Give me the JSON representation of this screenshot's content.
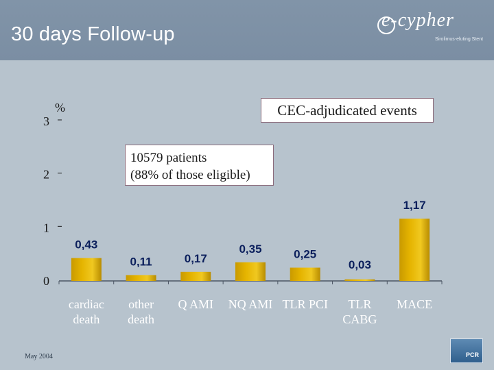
{
  "header": {
    "title": "30 days Follow-up",
    "logo_text": "e-cypher",
    "logo_sub": "Sirolimus-eluting Stent"
  },
  "annotations": {
    "cec": "CEC-adjudicated events",
    "patients_line1": "10579 patients",
    "patients_line2": "(88% of those eligible)"
  },
  "footer": {
    "date": "May 2004",
    "corner_logo_text": "PCR"
  },
  "chart_data": {
    "type": "bar",
    "ylabel": "%",
    "ylim": [
      0,
      3
    ],
    "yticks": [
      0,
      1,
      2,
      3
    ],
    "grid": false,
    "categories": [
      [
        "cardiac",
        "death"
      ],
      [
        "other",
        "death"
      ],
      [
        "Q AMI"
      ],
      [
        "NQ AMI"
      ],
      [
        "TLR PCI"
      ],
      [
        "TLR",
        "CABG"
      ],
      [
        "MACE"
      ]
    ],
    "values": [
      0.43,
      0.11,
      0.17,
      0.35,
      0.25,
      0.03,
      1.17
    ],
    "value_labels": [
      "0,43",
      "0,11",
      "0,17",
      "0,35",
      "0,25",
      "0,03",
      "1,17"
    ],
    "bar_color": "#e5b400"
  }
}
